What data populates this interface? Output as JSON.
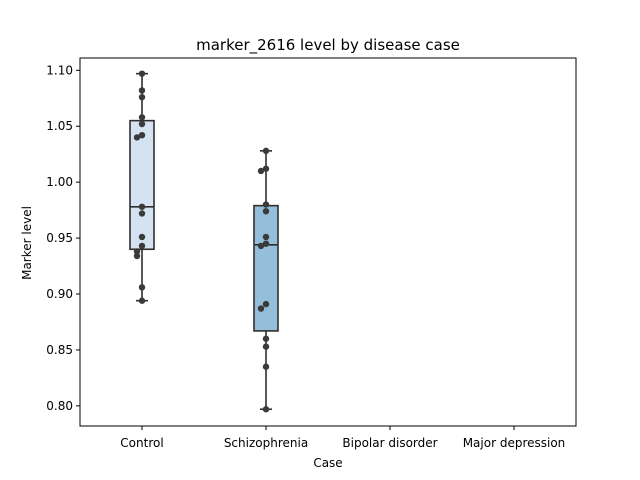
{
  "chart_data": {
    "type": "box",
    "title": "marker_2616 level by disease case",
    "xlabel": "Case",
    "ylabel": "Marker level",
    "categories": [
      "Control",
      "Schizophrenia",
      "Bipolar disorder",
      "Major depression"
    ],
    "ylim": [
      0.782,
      1.111
    ],
    "yticks": [
      0.8,
      0.85,
      0.9,
      0.95,
      1.0,
      1.05,
      1.1
    ],
    "ytick_labels": [
      "0.80",
      "0.85",
      "0.90",
      "0.95",
      "1.00",
      "1.05",
      "1.10"
    ],
    "grid": false,
    "boxes": [
      {
        "category": "Control",
        "whisker_low": 0.894,
        "q1": 0.94,
        "median": 0.978,
        "q3": 1.055,
        "whisker_high": 1.097,
        "color": "#d4e2f1",
        "points": [
          1.097,
          1.082,
          1.076,
          1.058,
          1.052,
          1.042,
          1.04,
          0.978,
          0.972,
          0.951,
          0.943,
          0.938,
          0.934,
          0.906,
          0.894
        ]
      },
      {
        "category": "Schizophrenia",
        "whisker_low": 0.797,
        "q1": 0.867,
        "median": 0.944,
        "q3": 0.979,
        "whisker_high": 1.028,
        "color": "#94bed9",
        "points": [
          1.028,
          1.012,
          1.01,
          0.98,
          0.974,
          0.951,
          0.945,
          0.943,
          0.891,
          0.887,
          0.86,
          0.853,
          0.835,
          0.797
        ]
      },
      {
        "category": "Bipolar disorder",
        "points": []
      },
      {
        "category": "Major depression",
        "points": []
      }
    ],
    "point_color": "#3a3a3a",
    "box_edge_color": "#2f2f2f"
  }
}
